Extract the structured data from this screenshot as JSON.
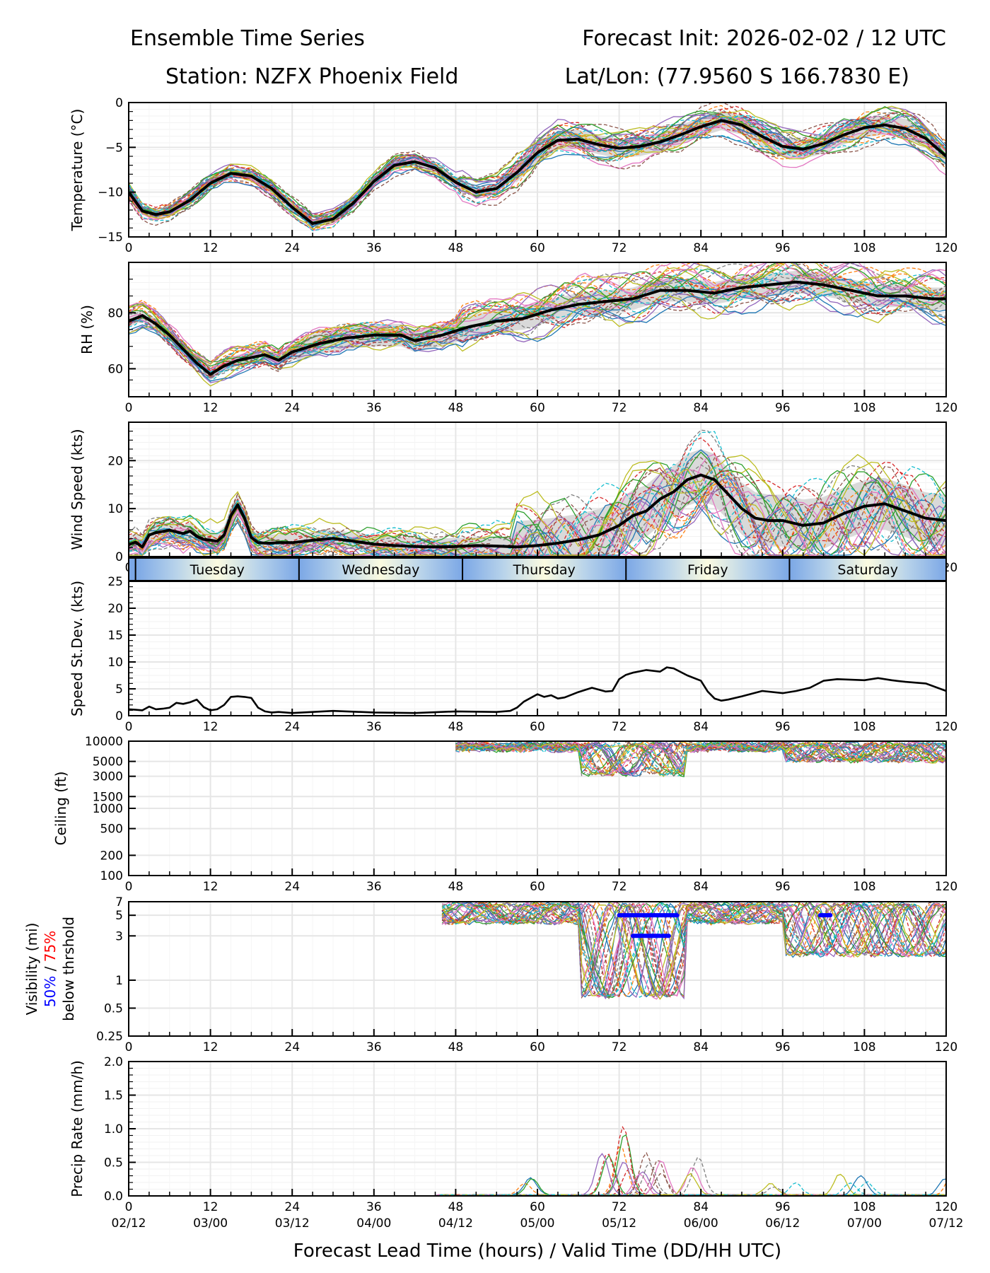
{
  "header": {
    "title_left": "Ensemble Time Series",
    "title_right": "Forecast Init: 2026-02-02 / 12 UTC",
    "station": "Station: NZFX Phoenix Field",
    "latlon": "Lat/Lon: (77.9560 S 166.7830 E)"
  },
  "colors": {
    "mean_line": "#000000",
    "spread_band": "#d9d9d9",
    "vis_50": "#0000ff",
    "vis_75": "#ff0000",
    "grid": "#e6e6e6",
    "members": [
      "#1f77b4",
      "#ff7f0e",
      "#2ca02c",
      "#d62728",
      "#9467bd",
      "#8c564b",
      "#e377c2",
      "#7f7f7f",
      "#bcbd22",
      "#17becf"
    ]
  },
  "chart_data": {
    "type": "line",
    "xlabel": "Forecast Lead Time (hours) / Valid Time (DD/HH UTC)",
    "x_range": [
      0,
      120
    ],
    "x_ticks": [
      0,
      12,
      24,
      36,
      48,
      60,
      72,
      84,
      96,
      108,
      120
    ],
    "x_tick_labels": [
      "0",
      "12",
      "24",
      "36",
      "48",
      "60",
      "72",
      "84",
      "96",
      "108",
      "120"
    ],
    "valid_time_labels": [
      "02/12",
      "03/00",
      "03/12",
      "04/00",
      "04/12",
      "05/00",
      "05/12",
      "06/00",
      "06/12",
      "07/00",
      "07/12"
    ],
    "day_bar": {
      "labels": [
        "Tuesday",
        "Wednesday",
        "Thursday",
        "Friday",
        "Saturday"
      ],
      "boundaries_hours": [
        1,
        25,
        49,
        73,
        97
      ]
    },
    "panels": [
      {
        "id": "temperature",
        "ylabel": "Temperature (°C)",
        "ylim": [
          -15,
          0
        ],
        "yscale": "linear",
        "y_ticks": [
          -15,
          -10,
          -5,
          0
        ],
        "y_tick_labels": [
          "−15",
          "−10",
          "−5",
          "0"
        ],
        "mean": {
          "x": [
            0,
            2,
            4,
            6,
            9,
            12,
            15,
            18,
            21,
            24,
            27,
            30,
            33,
            36,
            39,
            42,
            45,
            48,
            51,
            54,
            57,
            60,
            63,
            66,
            69,
            72,
            75,
            78,
            81,
            84,
            87,
            90,
            93,
            96,
            99,
            102,
            105,
            108,
            111,
            114,
            117,
            120
          ],
          "y": [
            -10.0,
            -12.1,
            -12.5,
            -12.2,
            -10.9,
            -9.0,
            -7.9,
            -8.2,
            -9.6,
            -11.7,
            -13.5,
            -13.0,
            -11.2,
            -8.8,
            -7.0,
            -6.6,
            -7.3,
            -8.9,
            -10.0,
            -9.6,
            -7.8,
            -5.6,
            -4.2,
            -4.1,
            -4.7,
            -5.1,
            -4.9,
            -4.4,
            -3.6,
            -2.7,
            -2.0,
            -2.5,
            -3.8,
            -4.9,
            -5.2,
            -4.6,
            -3.6,
            -2.8,
            -2.5,
            -2.9,
            -4.0,
            -6.0
          ]
        },
        "spread": 0.9,
        "members": 30
      },
      {
        "id": "rh",
        "ylabel": "RH (%)",
        "ylim": [
          50,
          98
        ],
        "yscale": "linear",
        "y_ticks": [
          60,
          80
        ],
        "y_tick_labels": [
          "60",
          "80"
        ],
        "mean": {
          "x": [
            0,
            2,
            4,
            6,
            8,
            10,
            12,
            14,
            16,
            18,
            20,
            22,
            24,
            28,
            32,
            36,
            40,
            42,
            46,
            50,
            54,
            58,
            62,
            66,
            70,
            74,
            78,
            82,
            86,
            90,
            94,
            98,
            102,
            106,
            110,
            114,
            118,
            120
          ],
          "y": [
            77,
            79,
            76,
            72,
            67,
            62,
            58,
            61,
            63,
            64,
            65,
            63,
            66,
            69,
            71,
            72,
            72,
            70,
            72,
            75,
            77,
            78,
            81,
            83,
            84,
            85,
            88,
            88,
            87,
            89,
            90,
            91,
            90,
            88,
            86,
            86,
            85,
            85
          ]
        },
        "spread": 4,
        "members": 30
      },
      {
        "id": "wind_speed",
        "ylabel": "Wind Speed (kts)",
        "ylim": [
          0,
          28
        ],
        "yscale": "linear",
        "y_ticks": [
          0,
          10,
          20
        ],
        "y_tick_labels": [
          "0",
          "10",
          "20"
        ],
        "mean": {
          "x": [
            0,
            1,
            2,
            3,
            4,
            6,
            8,
            9,
            10,
            11,
            12,
            13,
            14,
            15,
            16,
            17,
            18,
            19,
            20,
            21,
            22,
            24,
            27,
            30,
            33,
            36,
            39,
            42,
            45,
            48,
            51,
            54,
            57,
            60,
            63,
            66,
            69,
            72,
            74,
            76,
            78,
            80,
            82,
            84,
            86,
            88,
            90,
            92,
            94,
            96,
            99,
            102,
            105,
            108,
            111,
            114,
            117,
            120
          ],
          "y": [
            2.5,
            3.0,
            2.0,
            4.5,
            5.0,
            5.5,
            4.8,
            5.3,
            4.2,
            3.6,
            3.4,
            3.2,
            4.5,
            8.5,
            10.8,
            8.0,
            4.0,
            2.9,
            2.8,
            2.8,
            2.9,
            2.9,
            3.4,
            3.8,
            3.2,
            2.6,
            2.3,
            2.1,
            2.0,
            2.1,
            2.3,
            2.2,
            2.0,
            2.3,
            2.8,
            3.5,
            4.5,
            6.5,
            8.5,
            9.5,
            12.0,
            13.5,
            16.0,
            17.0,
            16.0,
            13.0,
            10.0,
            8.0,
            7.5,
            7.5,
            6.5,
            7.0,
            9.0,
            10.5,
            11.0,
            9.5,
            8.0,
            7.5
          ]
        },
        "spread": 3,
        "members": 30
      },
      {
        "id": "speed_stdev",
        "ylabel": "Speed St.Dev. (kts)",
        "ylim": [
          0,
          25
        ],
        "yscale": "linear",
        "y_ticks": [
          0,
          5,
          10,
          15,
          20,
          25
        ],
        "y_tick_labels": [
          "0",
          "5",
          "10",
          "15",
          "20",
          "25"
        ],
        "mean": {
          "x": [
            0,
            1,
            2,
            3,
            4,
            5,
            6,
            7,
            8,
            9,
            10,
            11,
            12,
            13,
            14,
            15,
            16,
            17,
            18,
            19,
            20,
            21,
            22,
            24,
            30,
            36,
            42,
            48,
            54,
            56,
            57,
            58,
            60,
            61,
            62,
            63,
            64,
            66,
            68,
            70,
            71,
            72,
            73,
            74,
            76,
            78,
            79,
            80,
            82,
            84,
            85,
            86,
            87,
            88,
            90,
            93,
            96,
            98,
            100,
            102,
            104,
            108,
            110,
            112,
            114,
            117,
            120
          ],
          "y": [
            1.2,
            1.1,
            1.0,
            1.7,
            1.2,
            1.3,
            1.5,
            2.4,
            2.2,
            2.5,
            3.0,
            1.6,
            1.0,
            1.2,
            2.0,
            3.5,
            3.6,
            3.5,
            3.3,
            1.5,
            0.8,
            0.6,
            0.7,
            0.5,
            0.9,
            0.6,
            0.5,
            0.8,
            0.7,
            0.9,
            1.5,
            2.6,
            4.0,
            3.5,
            3.8,
            3.2,
            3.4,
            4.4,
            5.2,
            4.5,
            4.6,
            6.8,
            7.6,
            8.0,
            8.5,
            8.2,
            9.0,
            8.8,
            7.5,
            6.5,
            4.5,
            3.2,
            2.8,
            3.0,
            3.6,
            4.6,
            4.2,
            4.6,
            5.2,
            6.5,
            6.8,
            6.6,
            7.0,
            6.6,
            6.3,
            6.0,
            4.6
          ]
        },
        "spread": 0,
        "members": 0
      },
      {
        "id": "ceiling",
        "ylabel": "Ceiling (ft)",
        "ylim": [
          100,
          10000
        ],
        "yscale": "log",
        "y_ticks": [
          100,
          200,
          500,
          1000,
          1500,
          3000,
          5000,
          10000
        ],
        "y_tick_labels": [
          "100",
          "200",
          "500",
          "1000",
          "1500",
          "3000",
          "5000",
          "10000"
        ],
        "members_active_hours": [
          48,
          120
        ],
        "members": 30
      },
      {
        "id": "visibility",
        "ylabel": "Visibility (mi)",
        "ylabel_sub_50": "50%",
        "ylabel_sub_sep": " / ",
        "ylabel_sub_75": "75%",
        "ylabel_sub2": "below thrshold",
        "ylim": [
          0.25,
          7
        ],
        "yscale": "log",
        "y_ticks": [
          0.25,
          0.5,
          1,
          3,
          5,
          7
        ],
        "y_tick_labels": [
          "0.25",
          "0.5",
          "1",
          "3",
          "5",
          "7"
        ],
        "threshold_bars": [
          {
            "level_mi": 5,
            "start_h": 72,
            "end_h": 80.5,
            "color": "vis_50"
          },
          {
            "level_mi": 5,
            "start_h": 101.5,
            "end_h": 103,
            "color": "vis_50"
          },
          {
            "level_mi": 3,
            "start_h": 74,
            "end_h": 78,
            "color": "vis_50"
          },
          {
            "level_mi": 3,
            "start_h": 78.3,
            "end_h": 79.3,
            "color": "vis_50"
          }
        ],
        "members_active_hours": [
          46,
          120
        ],
        "members": 30
      },
      {
        "id": "precip",
        "ylabel": "Precip Rate (mm/h)",
        "ylim": [
          0,
          2
        ],
        "yscale": "linear",
        "y_ticks": [
          0.0,
          0.5,
          1.0,
          1.5,
          2.0
        ],
        "y_tick_labels": [
          "0.0",
          "0.5",
          "1.0",
          "1.5",
          "2.0"
        ],
        "peaks": [
          {
            "h": 59,
            "v": 0.3
          },
          {
            "h": 71,
            "v": 1.07
          },
          {
            "h": 70,
            "v": 0.65
          },
          {
            "h": 74,
            "v": 0.7
          },
          {
            "h": 76,
            "v": 0.6
          },
          {
            "h": 78,
            "v": 0.55
          },
          {
            "h": 84,
            "v": 0.6
          },
          {
            "h": 96,
            "v": 0.2
          },
          {
            "h": 105,
            "v": 0.35
          },
          {
            "h": 109,
            "v": 0.3
          },
          {
            "h": 120,
            "v": 0.4
          }
        ],
        "members": 30
      }
    ]
  }
}
